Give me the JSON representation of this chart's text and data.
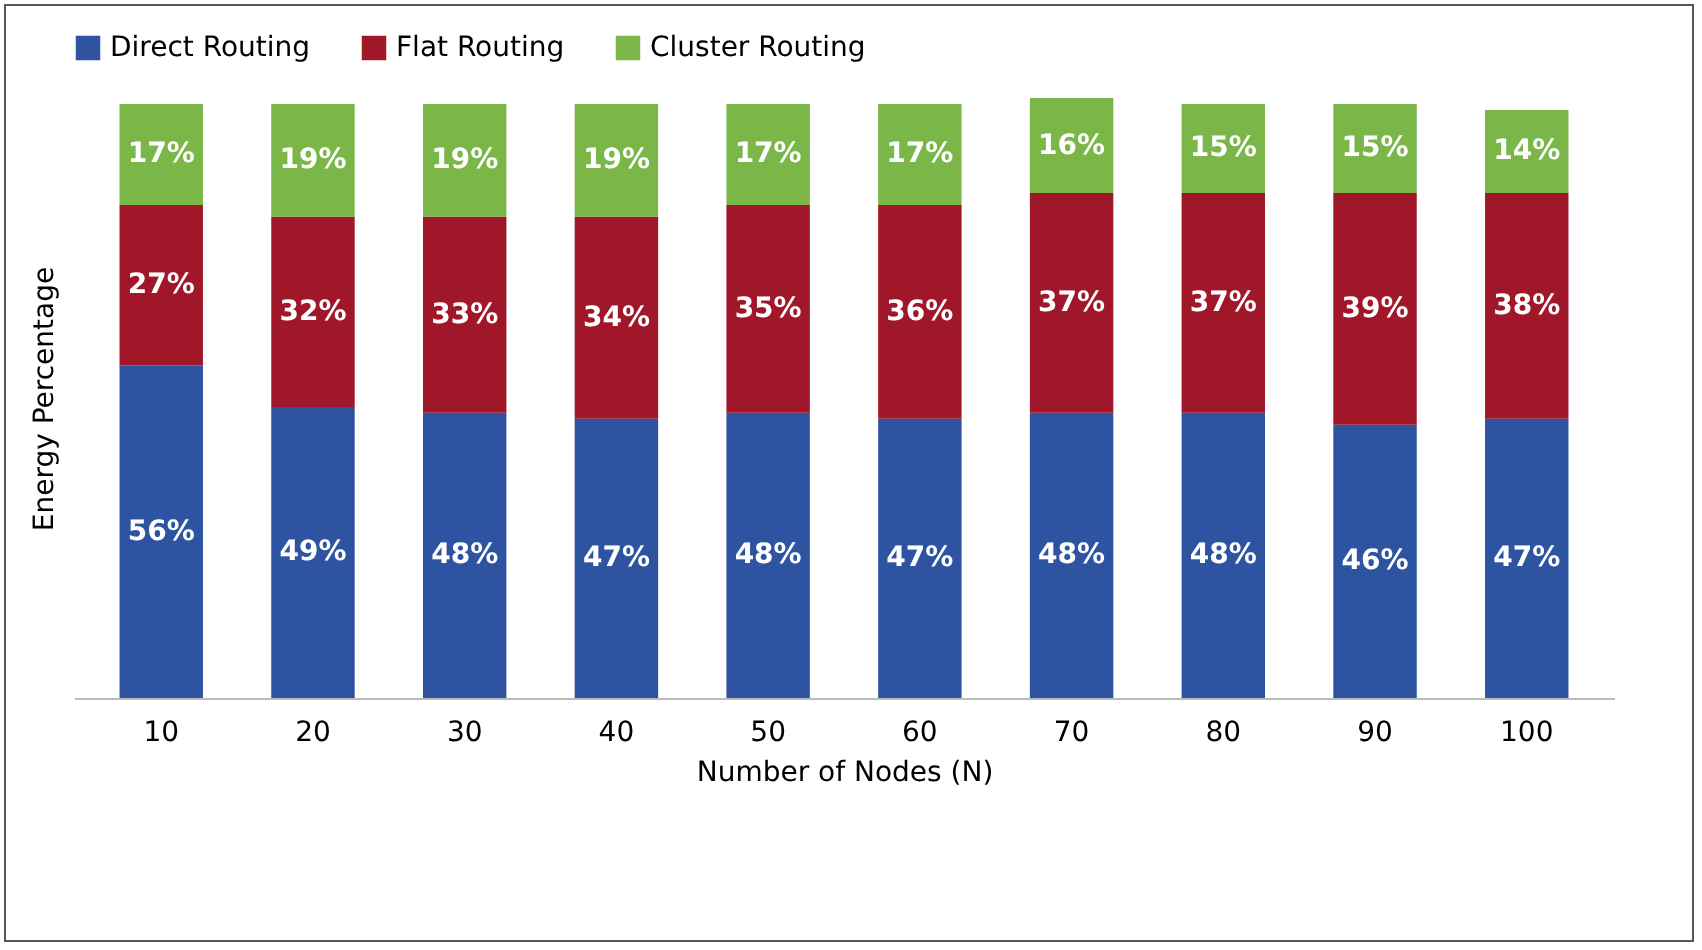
{
  "chart_data": {
    "type": "bar",
    "stacked": true,
    "xlabel": "Number of Nodes (N)",
    "ylabel": "Energy Percentage",
    "categories": [
      "10",
      "20",
      "30",
      "40",
      "50",
      "60",
      "70",
      "80",
      "90",
      "100"
    ],
    "series": [
      {
        "name": "Direct Routing",
        "color": "#2e54a1",
        "values": [
          56,
          49,
          48,
          47,
          48,
          47,
          48,
          48,
          46,
          47
        ],
        "value_labels": [
          "56%",
          "49%",
          "48%",
          "47%",
          "48%",
          "47%",
          "48%",
          "48%",
          "46%",
          "47%"
        ]
      },
      {
        "name": "Flat Routing",
        "color": "#a0172a",
        "values": [
          27,
          32,
          33,
          34,
          35,
          36,
          37,
          37,
          39,
          38
        ],
        "value_labels": [
          "27%",
          "32%",
          "33%",
          "34%",
          "35%",
          "36%",
          "37%",
          "37%",
          "39%",
          "38%"
        ]
      },
      {
        "name": "Cluster Routing",
        "color": "#7ab648",
        "values": [
          17,
          19,
          19,
          19,
          17,
          17,
          16,
          15,
          15,
          14
        ],
        "value_labels": [
          "17%",
          "19%",
          "19%",
          "19%",
          "17%",
          "17%",
          "16%",
          "15%",
          "15%",
          "14%"
        ]
      }
    ],
    "legend": "top",
    "grid": false,
    "tick_labels": "x"
  }
}
